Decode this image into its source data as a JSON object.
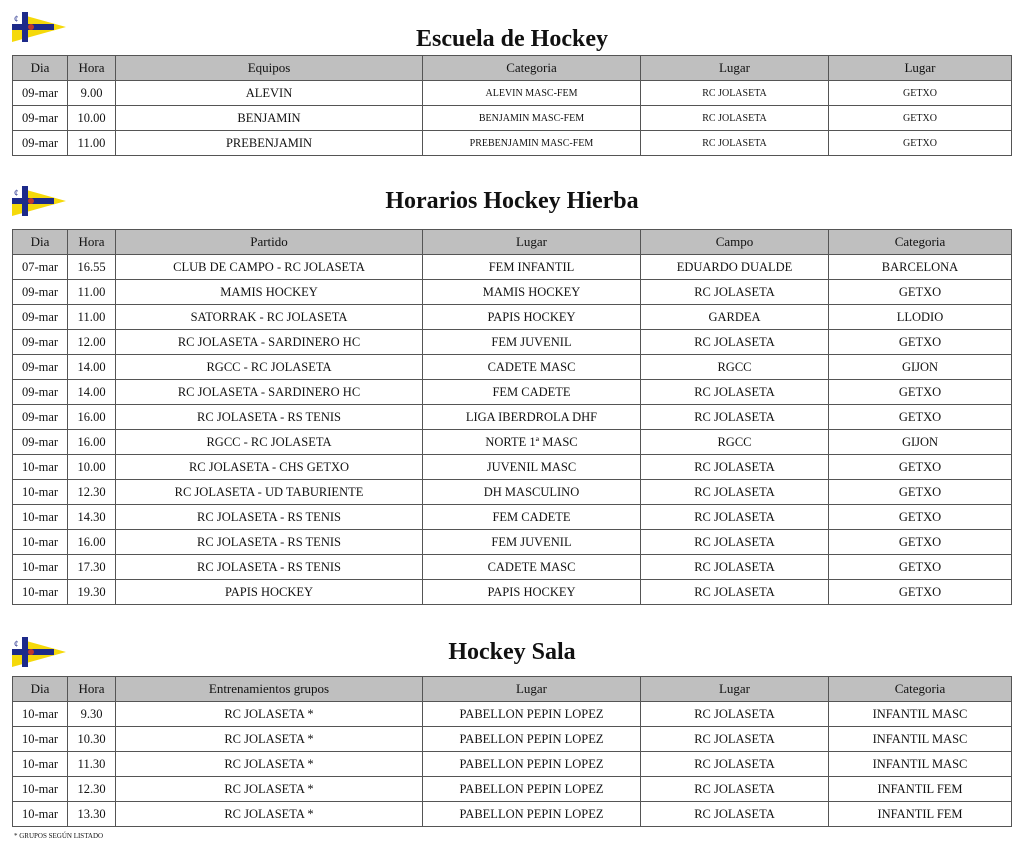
{
  "colors": {
    "header_bg": "#bfbfbf",
    "flag_yellow": "#f5d90a",
    "flag_blue": "#1d2a8a"
  },
  "logo": {
    "icon": "club-pennant-flag",
    "text": "¢"
  },
  "sections": [
    {
      "title": "Escuela de Hockey",
      "small_cols": [
        3,
        4,
        5
      ],
      "headers": [
        "Dia",
        "Hora",
        "Equipos",
        "Categoria",
        "Lugar",
        "Lugar"
      ],
      "rows": [
        [
          "09-mar",
          "9.00",
          "ALEVIN",
          "ALEVIN MASC-FEM",
          "RC JOLASETA",
          "GETXO"
        ],
        [
          "09-mar",
          "10.00",
          "BENJAMIN",
          "BENJAMIN MASC-FEM",
          "RC JOLASETA",
          "GETXO"
        ],
        [
          "09-mar",
          "11.00",
          "PREBENJAMIN",
          "PREBENJAMIN MASC-FEM",
          "RC JOLASETA",
          "GETXO"
        ]
      ]
    },
    {
      "title": "Horarios Hockey Hierba",
      "small_cols": [],
      "headers": [
        "Dia",
        "Hora",
        "Partido",
        "Lugar",
        "Campo",
        "Categoria"
      ],
      "rows": [
        [
          "07-mar",
          "16.55",
          "CLUB DE CAMPO - RC JOLASETA",
          "FEM INFANTIL",
          "EDUARDO DUALDE",
          "BARCELONA"
        ],
        [
          "09-mar",
          "11.00",
          "MAMIS HOCKEY",
          "MAMIS HOCKEY",
          "RC JOLASETA",
          "GETXO"
        ],
        [
          "09-mar",
          "11.00",
          "SATORRAK - RC JOLASETA",
          "PAPIS HOCKEY",
          "GARDEA",
          "LLODIO"
        ],
        [
          "09-mar",
          "12.00",
          "RC JOLASETA - SARDINERO HC",
          "FEM JUVENIL",
          "RC JOLASETA",
          "GETXO"
        ],
        [
          "09-mar",
          "14.00",
          "RGCC - RC JOLASETA",
          "CADETE MASC",
          "RGCC",
          "GIJON"
        ],
        [
          "09-mar",
          "14.00",
          "RC JOLASETA - SARDINERO HC",
          "FEM CADETE",
          "RC JOLASETA",
          "GETXO"
        ],
        [
          "09-mar",
          "16.00",
          "RC JOLASETA - RS TENIS",
          "LIGA IBERDROLA DHF",
          "RC JOLASETA",
          "GETXO"
        ],
        [
          "09-mar",
          "16.00",
          "RGCC - RC JOLASETA",
          "NORTE 1ª MASC",
          "RGCC",
          "GIJON"
        ],
        [
          "10-mar",
          "10.00",
          "RC JOLASETA - CHS GETXO",
          "JUVENIL MASC",
          "RC JOLASETA",
          "GETXO"
        ],
        [
          "10-mar",
          "12.30",
          "RC JOLASETA - UD TABURIENTE",
          "DH MASCULINO",
          "RC JOLASETA",
          "GETXO"
        ],
        [
          "10-mar",
          "14.30",
          "RC JOLASETA - RS TENIS",
          "FEM CADETE",
          "RC JOLASETA",
          "GETXO"
        ],
        [
          "10-mar",
          "16.00",
          "RC JOLASETA - RS TENIS",
          "FEM JUVENIL",
          "RC JOLASETA",
          "GETXO"
        ],
        [
          "10-mar",
          "17.30",
          "RC JOLASETA - RS TENIS",
          "CADETE MASC",
          "RC JOLASETA",
          "GETXO"
        ],
        [
          "10-mar",
          "19.30",
          "PAPIS HOCKEY",
          "PAPIS HOCKEY",
          "RC JOLASETA",
          "GETXO"
        ]
      ]
    },
    {
      "title": "Hockey Sala",
      "small_cols": [],
      "headers": [
        "Dia",
        "Hora",
        "Entrenamientos grupos",
        "Lugar",
        "Lugar",
        "Categoria"
      ],
      "rows": [
        [
          "10-mar",
          "9.30",
          "RC JOLASETA *",
          "PABELLON PEPIN LOPEZ",
          "RC JOLASETA",
          "INFANTIL MASC"
        ],
        [
          "10-mar",
          "10.30",
          "RC JOLASETA *",
          "PABELLON PEPIN LOPEZ",
          "RC JOLASETA",
          "INFANTIL MASC"
        ],
        [
          "10-mar",
          "11.30",
          "RC JOLASETA *",
          "PABELLON PEPIN LOPEZ",
          "RC JOLASETA",
          "INFANTIL MASC"
        ],
        [
          "10-mar",
          "12.30",
          "RC JOLASETA *",
          "PABELLON PEPIN LOPEZ",
          "RC JOLASETA",
          "INFANTIL FEM"
        ],
        [
          "10-mar",
          "13.30",
          "RC JOLASETA *",
          "PABELLON PEPIN LOPEZ",
          "RC JOLASETA",
          "INFANTIL FEM"
        ]
      ]
    }
  ],
  "footnote": "* GRUPOS SEGÚN LISTADO"
}
